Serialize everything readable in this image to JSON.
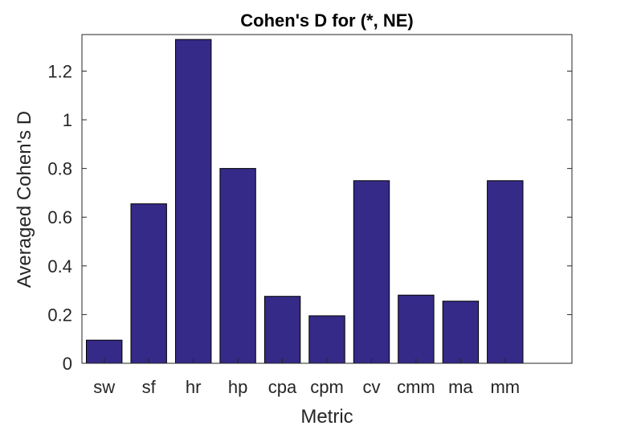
{
  "chart_data": {
    "type": "bar",
    "title": "Cohen's D for (*, NE)",
    "xlabel": "Metric",
    "ylabel": "Averaged Cohen's D",
    "categories": [
      "sw",
      "sf",
      "hr",
      "hp",
      "cpa",
      "cpm",
      "cv",
      "cmm",
      "ma",
      "mm"
    ],
    "values": [
      0.095,
      0.655,
      1.33,
      0.8,
      0.275,
      0.195,
      0.75,
      0.28,
      0.255,
      0.75
    ],
    "ylim": [
      0,
      1.35
    ],
    "yticks": [
      0,
      0.2,
      0.4,
      0.6,
      0.8,
      1,
      1.2
    ],
    "ytick_labels": [
      "0",
      "0.2",
      "0.4",
      "0.6",
      "0.8",
      "1",
      "1.2"
    ],
    "xlim": [
      0.5,
      11.5
    ],
    "grid": false,
    "legend": "none",
    "bar_color": "#352a87"
  }
}
